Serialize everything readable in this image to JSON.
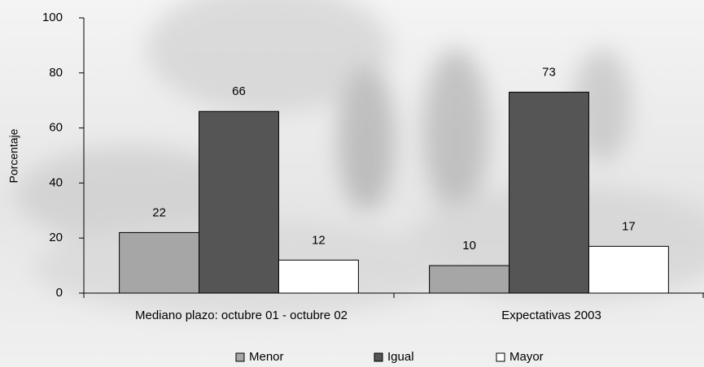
{
  "chart_data": {
    "type": "bar",
    "y_label": "Porcentaje",
    "categories": [
      "Mediano plazo: octubre 01 - octubre 02",
      "Expectativas 2003"
    ],
    "series": [
      {
        "name": "Menor",
        "color": "#a6a6a6",
        "values": [
          22,
          10
        ]
      },
      {
        "name": "Igual",
        "color": "#555555",
        "values": [
          66,
          73
        ]
      },
      {
        "name": "Mayor",
        "color": "#ffffff",
        "values": [
          12,
          17
        ]
      }
    ],
    "ylim": [
      0,
      100
    ],
    "yticks": [
      0,
      20,
      40,
      60,
      80,
      100
    ],
    "grid": false,
    "legend": "bottom"
  }
}
